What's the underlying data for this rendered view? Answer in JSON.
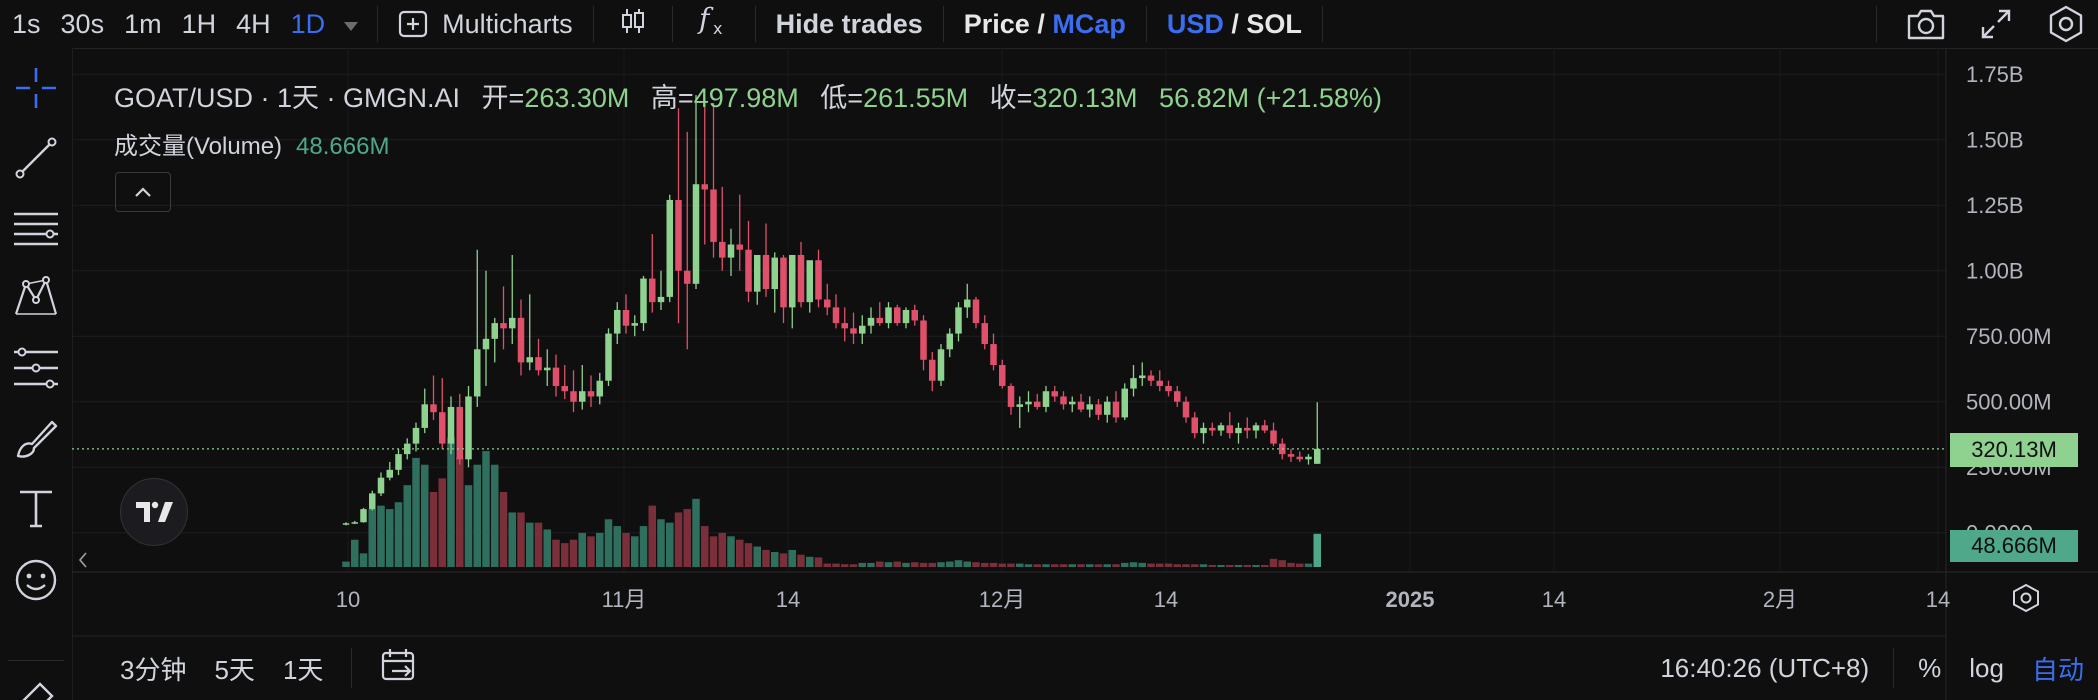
{
  "toolbar": {
    "intervals": [
      "1s",
      "30s",
      "1m",
      "1H",
      "4H",
      "1D"
    ],
    "active_interval": "1D",
    "multicharts_label": "Multicharts",
    "hide_trades_label": "Hide trades",
    "price_label": "Price",
    "slash": "/",
    "mcap_label": "MCap",
    "usd_label": "USD",
    "sol_label": "SOL",
    "icons": [
      "candle-type-icon",
      "indicators-icon",
      "camera-icon",
      "fullscreen-icon",
      "settings-icon"
    ]
  },
  "legend": {
    "symbol": "GOAT/USD · 1天 · GMGN.AI",
    "open_label": "开=",
    "open": "263.30M",
    "high_label": "高=",
    "high": "497.98M",
    "low_label": "低=",
    "low": "261.55M",
    "close_label": "收=",
    "close": "320.13M",
    "change": "56.82M (+21.58%)"
  },
  "volume_legend": {
    "label": "成交量(Volume)",
    "value": "48.666M"
  },
  "price_axis": {
    "ticks": [
      "1.75B",
      "1.50B",
      "1.25B",
      "1.00B",
      "750.00M",
      "500.00M",
      "250.00M",
      "0.0000"
    ],
    "current_price": "320.13M",
    "current_volume": "48.666M"
  },
  "time_axis": {
    "ticks": [
      "10",
      "11月",
      "14",
      "12月",
      "14",
      "2025",
      "14",
      "2月",
      "14"
    ]
  },
  "bottom": {
    "ranges": [
      "3分钟",
      "5天",
      "1天"
    ],
    "time": "16:40:26 (UTC+8)",
    "percent": "%",
    "log": "log",
    "auto": "自动"
  },
  "colors": {
    "up": "#8fd18f",
    "down": "#e0506a",
    "vol_up": "#2f6f5e",
    "vol_down": "#7a2f3a",
    "accent": "#3b6df0"
  },
  "chart_data": {
    "type": "candlestick",
    "y_unit": "USD market cap (M)",
    "ylim": [
      -150,
      1850
    ],
    "volume_ylim": [
      0,
      220
    ],
    "candles": [
      {
        "o": 32,
        "h": 40,
        "l": 28,
        "c": 36,
        "v": 8
      },
      {
        "o": 36,
        "h": 45,
        "l": 33,
        "c": 40,
        "v": 40
      },
      {
        "o": 40,
        "h": 95,
        "l": 38,
        "c": 90,
        "v": 20
      },
      {
        "o": 90,
        "h": 160,
        "l": 85,
        "c": 150,
        "v": 85
      },
      {
        "o": 150,
        "h": 230,
        "l": 140,
        "c": 210,
        "v": 90
      },
      {
        "o": 210,
        "h": 270,
        "l": 200,
        "c": 240,
        "v": 85
      },
      {
        "o": 240,
        "h": 320,
        "l": 220,
        "c": 300,
        "v": 95
      },
      {
        "o": 300,
        "h": 360,
        "l": 280,
        "c": 340,
        "v": 120
      },
      {
        "o": 340,
        "h": 420,
        "l": 310,
        "c": 400,
        "v": 160
      },
      {
        "o": 400,
        "h": 550,
        "l": 380,
        "c": 490,
        "v": 150
      },
      {
        "o": 490,
        "h": 600,
        "l": 430,
        "c": 460,
        "v": 110
      },
      {
        "o": 460,
        "h": 590,
        "l": 320,
        "c": 340,
        "v": 130
      },
      {
        "o": 340,
        "h": 520,
        "l": 300,
        "c": 480,
        "v": 190
      },
      {
        "o": 480,
        "h": 530,
        "l": 260,
        "c": 280,
        "v": 160
      },
      {
        "o": 280,
        "h": 560,
        "l": 250,
        "c": 520,
        "v": 120
      },
      {
        "o": 520,
        "h": 1080,
        "l": 480,
        "c": 700,
        "v": 150
      },
      {
        "o": 700,
        "h": 1000,
        "l": 560,
        "c": 740,
        "v": 170
      },
      {
        "o": 740,
        "h": 820,
        "l": 650,
        "c": 800,
        "v": 150
      },
      {
        "o": 800,
        "h": 940,
        "l": 700,
        "c": 780,
        "v": 110
      },
      {
        "o": 780,
        "h": 1060,
        "l": 720,
        "c": 820,
        "v": 80
      },
      {
        "o": 820,
        "h": 890,
        "l": 600,
        "c": 650,
        "v": 80
      },
      {
        "o": 650,
        "h": 910,
        "l": 620,
        "c": 670,
        "v": 65
      },
      {
        "o": 670,
        "h": 740,
        "l": 600,
        "c": 620,
        "v": 65
      },
      {
        "o": 620,
        "h": 700,
        "l": 560,
        "c": 630,
        "v": 55
      },
      {
        "o": 630,
        "h": 680,
        "l": 520,
        "c": 560,
        "v": 40
      },
      {
        "o": 560,
        "h": 640,
        "l": 510,
        "c": 540,
        "v": 35
      },
      {
        "o": 540,
        "h": 620,
        "l": 460,
        "c": 500,
        "v": 40
      },
      {
        "o": 500,
        "h": 640,
        "l": 470,
        "c": 540,
        "v": 50
      },
      {
        "o": 540,
        "h": 600,
        "l": 480,
        "c": 520,
        "v": 45
      },
      {
        "o": 520,
        "h": 610,
        "l": 490,
        "c": 580,
        "v": 50
      },
      {
        "o": 580,
        "h": 780,
        "l": 560,
        "c": 760,
        "v": 70
      },
      {
        "o": 760,
        "h": 880,
        "l": 720,
        "c": 850,
        "v": 60
      },
      {
        "o": 850,
        "h": 910,
        "l": 760,
        "c": 790,
        "v": 50
      },
      {
        "o": 790,
        "h": 830,
        "l": 750,
        "c": 800,
        "v": 45
      },
      {
        "o": 800,
        "h": 980,
        "l": 770,
        "c": 970,
        "v": 60
      },
      {
        "o": 970,
        "h": 1140,
        "l": 840,
        "c": 880,
        "v": 90
      },
      {
        "o": 880,
        "h": 1000,
        "l": 850,
        "c": 900,
        "v": 70
      },
      {
        "o": 900,
        "h": 1290,
        "l": 880,
        "c": 1270,
        "v": 65
      },
      {
        "o": 1270,
        "h": 1620,
        "l": 800,
        "c": 1000,
        "v": 80
      },
      {
        "o": 1000,
        "h": 1530,
        "l": 700,
        "c": 950,
        "v": 85
      },
      {
        "o": 950,
        "h": 1670,
        "l": 930,
        "c": 1330,
        "v": 100
      },
      {
        "o": 1330,
        "h": 1660,
        "l": 1100,
        "c": 1310,
        "v": 60
      },
      {
        "o": 1310,
        "h": 1640,
        "l": 1050,
        "c": 1110,
        "v": 45
      },
      {
        "o": 1110,
        "h": 1320,
        "l": 1000,
        "c": 1050,
        "v": 50
      },
      {
        "o": 1050,
        "h": 1160,
        "l": 980,
        "c": 1100,
        "v": 45
      },
      {
        "o": 1100,
        "h": 1290,
        "l": 1000,
        "c": 1080,
        "v": 40
      },
      {
        "o": 1080,
        "h": 1190,
        "l": 880,
        "c": 920,
        "v": 35
      },
      {
        "o": 920,
        "h": 1040,
        "l": 870,
        "c": 1060,
        "v": 30
      },
      {
        "o": 1060,
        "h": 1180,
        "l": 900,
        "c": 930,
        "v": 25
      },
      {
        "o": 930,
        "h": 1070,
        "l": 840,
        "c": 1050,
        "v": 22
      },
      {
        "o": 1050,
        "h": 1060,
        "l": 800,
        "c": 860,
        "v": 20
      },
      {
        "o": 860,
        "h": 1060,
        "l": 780,
        "c": 1060,
        "v": 25
      },
      {
        "o": 1060,
        "h": 1110,
        "l": 860,
        "c": 880,
        "v": 18
      },
      {
        "o": 880,
        "h": 1030,
        "l": 840,
        "c": 1040,
        "v": 15
      },
      {
        "o": 1040,
        "h": 1080,
        "l": 860,
        "c": 890,
        "v": 14
      },
      {
        "o": 890,
        "h": 950,
        "l": 830,
        "c": 860,
        "v": 5
      },
      {
        "o": 860,
        "h": 910,
        "l": 780,
        "c": 800,
        "v": 5
      },
      {
        "o": 800,
        "h": 860,
        "l": 730,
        "c": 780,
        "v": 4
      },
      {
        "o": 780,
        "h": 840,
        "l": 720,
        "c": 760,
        "v": 4
      },
      {
        "o": 760,
        "h": 830,
        "l": 720,
        "c": 790,
        "v": 6
      },
      {
        "o": 790,
        "h": 860,
        "l": 760,
        "c": 820,
        "v": 6
      },
      {
        "o": 820,
        "h": 880,
        "l": 790,
        "c": 800,
        "v": 8
      },
      {
        "o": 800,
        "h": 880,
        "l": 780,
        "c": 860,
        "v": 7
      },
      {
        "o": 860,
        "h": 870,
        "l": 790,
        "c": 800,
        "v": 8
      },
      {
        "o": 800,
        "h": 860,
        "l": 780,
        "c": 850,
        "v": 6
      },
      {
        "o": 850,
        "h": 870,
        "l": 790,
        "c": 810,
        "v": 7
      },
      {
        "o": 810,
        "h": 830,
        "l": 620,
        "c": 660,
        "v": 6
      },
      {
        "o": 660,
        "h": 690,
        "l": 540,
        "c": 580,
        "v": 6
      },
      {
        "o": 580,
        "h": 720,
        "l": 560,
        "c": 700,
        "v": 7
      },
      {
        "o": 700,
        "h": 780,
        "l": 670,
        "c": 760,
        "v": 8
      },
      {
        "o": 760,
        "h": 880,
        "l": 730,
        "c": 860,
        "v": 10
      },
      {
        "o": 860,
        "h": 950,
        "l": 820,
        "c": 890,
        "v": 8
      },
      {
        "o": 890,
        "h": 900,
        "l": 780,
        "c": 800,
        "v": 7
      },
      {
        "o": 800,
        "h": 830,
        "l": 700,
        "c": 720,
        "v": 6
      },
      {
        "o": 720,
        "h": 760,
        "l": 620,
        "c": 640,
        "v": 6
      },
      {
        "o": 640,
        "h": 660,
        "l": 550,
        "c": 560,
        "v": 5
      },
      {
        "o": 560,
        "h": 570,
        "l": 450,
        "c": 480,
        "v": 5
      },
      {
        "o": 480,
        "h": 520,
        "l": 400,
        "c": 490,
        "v": 5
      },
      {
        "o": 490,
        "h": 540,
        "l": 460,
        "c": 500,
        "v": 4
      },
      {
        "o": 500,
        "h": 530,
        "l": 470,
        "c": 480,
        "v": 4
      },
      {
        "o": 480,
        "h": 560,
        "l": 460,
        "c": 540,
        "v": 4
      },
      {
        "o": 540,
        "h": 560,
        "l": 500,
        "c": 520,
        "v": 4
      },
      {
        "o": 520,
        "h": 540,
        "l": 470,
        "c": 490,
        "v": 4
      },
      {
        "o": 490,
        "h": 520,
        "l": 460,
        "c": 500,
        "v": 4
      },
      {
        "o": 500,
        "h": 530,
        "l": 460,
        "c": 470,
        "v": 4
      },
      {
        "o": 470,
        "h": 520,
        "l": 440,
        "c": 490,
        "v": 4
      },
      {
        "o": 490,
        "h": 510,
        "l": 430,
        "c": 450,
        "v": 4
      },
      {
        "o": 450,
        "h": 520,
        "l": 420,
        "c": 500,
        "v": 4
      },
      {
        "o": 500,
        "h": 540,
        "l": 420,
        "c": 440,
        "v": 4
      },
      {
        "o": 440,
        "h": 570,
        "l": 430,
        "c": 550,
        "v": 6
      },
      {
        "o": 550,
        "h": 640,
        "l": 520,
        "c": 590,
        "v": 7
      },
      {
        "o": 590,
        "h": 650,
        "l": 560,
        "c": 600,
        "v": 6
      },
      {
        "o": 600,
        "h": 620,
        "l": 560,
        "c": 580,
        "v": 5
      },
      {
        "o": 580,
        "h": 620,
        "l": 540,
        "c": 560,
        "v": 5
      },
      {
        "o": 560,
        "h": 580,
        "l": 520,
        "c": 540,
        "v": 5
      },
      {
        "o": 540,
        "h": 560,
        "l": 480,
        "c": 500,
        "v": 4
      },
      {
        "o": 500,
        "h": 520,
        "l": 420,
        "c": 440,
        "v": 4
      },
      {
        "o": 440,
        "h": 460,
        "l": 360,
        "c": 380,
        "v": 4
      },
      {
        "o": 380,
        "h": 420,
        "l": 340,
        "c": 400,
        "v": 4
      },
      {
        "o": 400,
        "h": 420,
        "l": 370,
        "c": 390,
        "v": 3
      },
      {
        "o": 390,
        "h": 420,
        "l": 370,
        "c": 410,
        "v": 3
      },
      {
        "o": 410,
        "h": 460,
        "l": 360,
        "c": 380,
        "v": 3
      },
      {
        "o": 380,
        "h": 420,
        "l": 340,
        "c": 400,
        "v": 3
      },
      {
        "o": 400,
        "h": 440,
        "l": 360,
        "c": 390,
        "v": 3
      },
      {
        "o": 390,
        "h": 420,
        "l": 360,
        "c": 410,
        "v": 3
      },
      {
        "o": 410,
        "h": 430,
        "l": 380,
        "c": 390,
        "v": 3
      },
      {
        "o": 390,
        "h": 420,
        "l": 330,
        "c": 340,
        "v": 12
      },
      {
        "o": 340,
        "h": 360,
        "l": 280,
        "c": 300,
        "v": 10
      },
      {
        "o": 300,
        "h": 320,
        "l": 270,
        "c": 290,
        "v": 6
      },
      {
        "o": 290,
        "h": 310,
        "l": 270,
        "c": 280,
        "v": 5
      },
      {
        "o": 280,
        "h": 300,
        "l": 260,
        "c": 290,
        "v": 5
      },
      {
        "o": 263,
        "h": 498,
        "l": 262,
        "c": 320,
        "v": 48.666
      }
    ]
  }
}
